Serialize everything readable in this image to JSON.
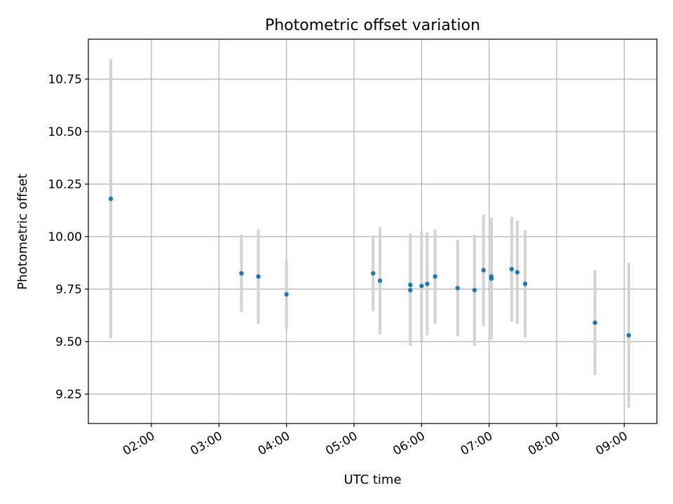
{
  "chart_data": {
    "type": "scatter",
    "title": "Photometric offset variation",
    "xlabel": "UTC time",
    "ylabel": "Photometric offset",
    "x_ticks": [
      "02:00",
      "03:00",
      "04:00",
      "05:00",
      "06:00",
      "07:00",
      "08:00",
      "09:00"
    ],
    "y_ticks": [
      9.25,
      9.5,
      9.75,
      10.0,
      10.25,
      10.5,
      10.75
    ],
    "ylim": [
      9.11,
      10.94
    ],
    "xlim": [
      "01:04",
      "09:29"
    ],
    "grid": true,
    "colors": {
      "point": "#1f77b4",
      "errorbar": "#d3d3d3",
      "grid": "#b0b0b0"
    },
    "points": [
      {
        "x": "01:24",
        "y": 10.18,
        "err": 0.665
      },
      {
        "x": "03:20",
        "y": 9.825,
        "err": 0.185
      },
      {
        "x": "03:35",
        "y": 9.81,
        "err": 0.225
      },
      {
        "x": "04:00",
        "y": 9.725,
        "err": 0.165
      },
      {
        "x": "05:17",
        "y": 9.825,
        "err": 0.18
      },
      {
        "x": "05:23",
        "y": 9.79,
        "err": 0.255
      },
      {
        "x": "05:50",
        "y": 9.77,
        "err": 0.245
      },
      {
        "x": "05:50",
        "y": 9.745,
        "err": 0.265
      },
      {
        "x": "06:00",
        "y": 9.765,
        "err": 0.26
      },
      {
        "x": "06:05",
        "y": 9.775,
        "err": 0.245
      },
      {
        "x": "06:12",
        "y": 9.81,
        "err": 0.225
      },
      {
        "x": "06:32",
        "y": 9.755,
        "err": 0.23
      },
      {
        "x": "06:47",
        "y": 9.745,
        "err": 0.265
      },
      {
        "x": "06:55",
        "y": 9.84,
        "err": 0.265
      },
      {
        "x": "07:02",
        "y": 9.81,
        "err": 0.28
      },
      {
        "x": "07:02",
        "y": 9.8,
        "err": 0.29
      },
      {
        "x": "07:20",
        "y": 9.845,
        "err": 0.25
      },
      {
        "x": "07:25",
        "y": 9.83,
        "err": 0.245
      },
      {
        "x": "07:32",
        "y": 9.775,
        "err": 0.255
      },
      {
        "x": "08:34",
        "y": 9.59,
        "err": 0.25
      },
      {
        "x": "09:04",
        "y": 9.53,
        "err": 0.345
      }
    ]
  }
}
